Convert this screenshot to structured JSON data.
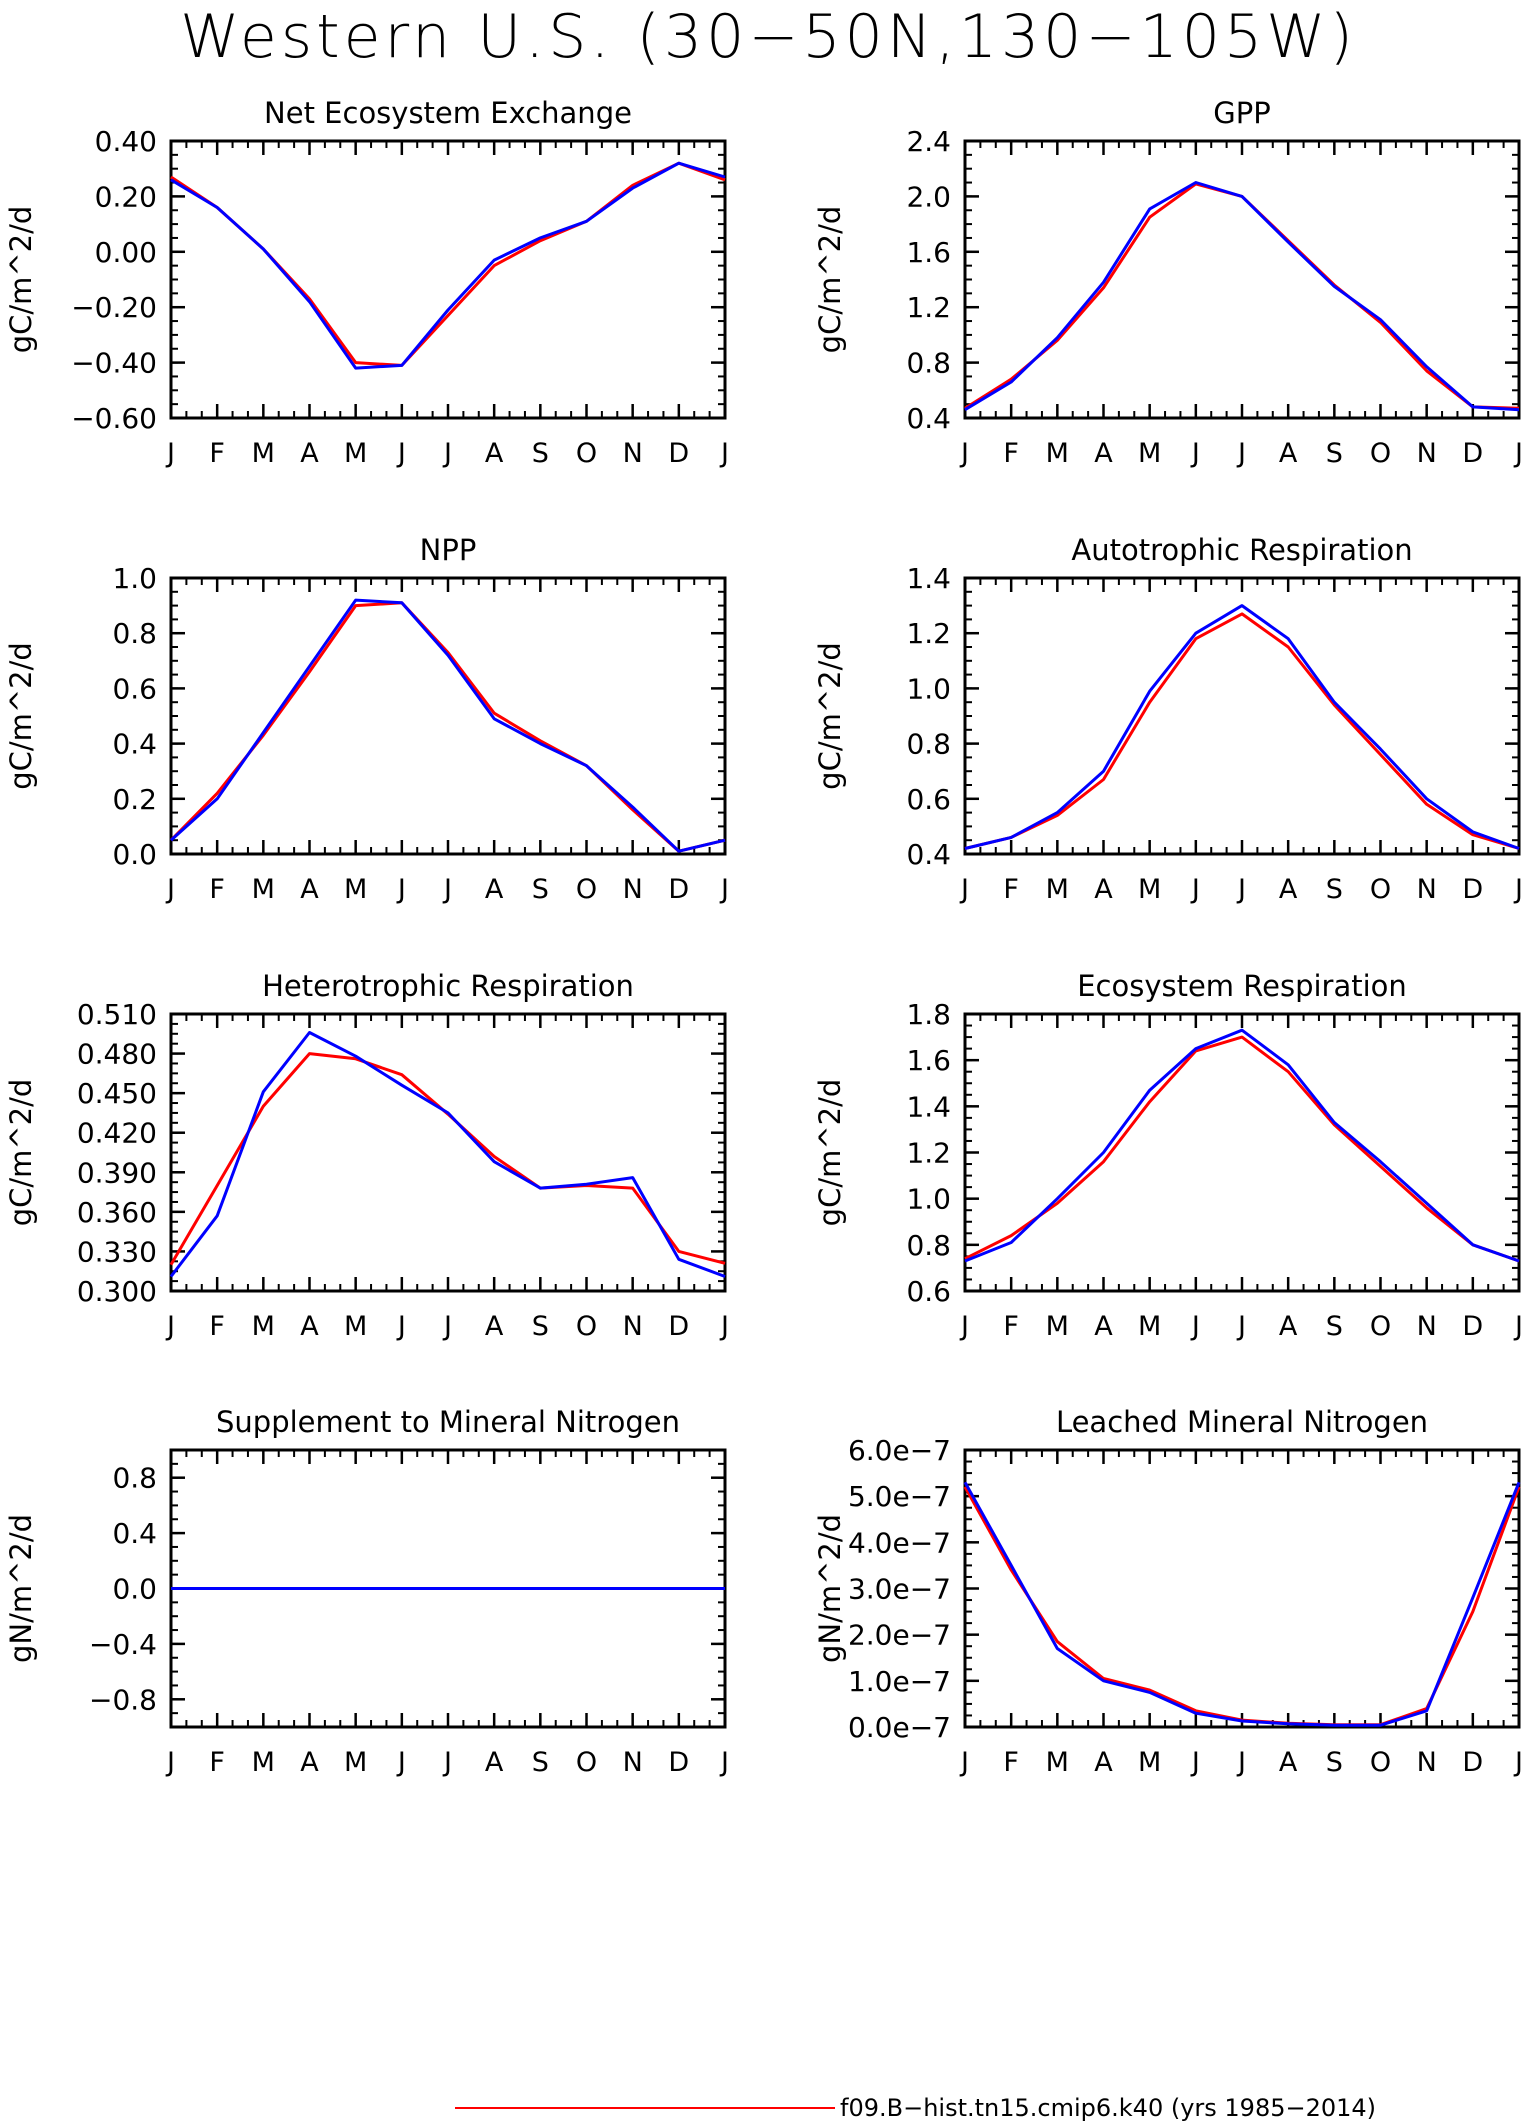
{
  "title": "Western U.S. (30−50N,130−105W)",
  "months": [
    "J",
    "F",
    "M",
    "A",
    "M",
    "J",
    "J",
    "A",
    "S",
    "O",
    "N",
    "D",
    "J"
  ],
  "colors": {
    "red": "#ff0000",
    "blue": "#0000ff",
    "axis": "#000000"
  },
  "legend": {
    "red_label": "f09.B−hist.tn15.cmip6.k40 (yrs 1985−2014)"
  },
  "chart_data": [
    {
      "type": "line",
      "title": "Net Ecosystem Exchange",
      "ylabel": "gC/m^2/d",
      "ylim": [
        -0.6,
        0.4
      ],
      "yticks": [
        0.4,
        0.2,
        0.0,
        -0.2,
        -0.4,
        -0.6
      ],
      "ytick_labels": [
        "0.40",
        "0.20",
        "0.00",
        "−0.20",
        "−0.40",
        "−0.60"
      ],
      "categories": [
        "J",
        "F",
        "M",
        "A",
        "M",
        "J",
        "J",
        "A",
        "S",
        "O",
        "N",
        "D",
        "J"
      ],
      "series": [
        {
          "color": "red",
          "values": [
            0.27,
            0.16,
            0.01,
            -0.17,
            -0.4,
            -0.41,
            -0.23,
            -0.05,
            0.04,
            0.11,
            0.24,
            0.32,
            0.26
          ]
        },
        {
          "color": "blue",
          "values": [
            0.26,
            0.16,
            0.01,
            -0.18,
            -0.42,
            -0.41,
            -0.21,
            -0.03,
            0.05,
            0.11,
            0.23,
            0.32,
            0.27
          ]
        }
      ]
    },
    {
      "type": "line",
      "title": "GPP",
      "ylabel": "gC/m^2/d",
      "ylim": [
        0.4,
        2.4
      ],
      "yticks": [
        2.4,
        2.0,
        1.6,
        1.2,
        0.8,
        0.4
      ],
      "ytick_labels": [
        "2.4",
        "2.0",
        "1.6",
        "1.2",
        "0.8",
        "0.4"
      ],
      "categories": [
        "J",
        "F",
        "M",
        "A",
        "M",
        "J",
        "J",
        "A",
        "S",
        "O",
        "N",
        "D",
        "J"
      ],
      "series": [
        {
          "color": "red",
          "values": [
            0.47,
            0.68,
            0.96,
            1.34,
            1.85,
            2.09,
            2.0,
            1.68,
            1.36,
            1.09,
            0.74,
            0.48,
            0.47
          ]
        },
        {
          "color": "blue",
          "values": [
            0.46,
            0.66,
            0.98,
            1.38,
            1.91,
            2.1,
            2.0,
            1.67,
            1.35,
            1.11,
            0.77,
            0.48,
            0.46
          ]
        }
      ]
    },
    {
      "type": "line",
      "title": "NPP",
      "ylabel": "gC/m^2/d",
      "ylim": [
        0.0,
        1.0
      ],
      "yticks": [
        1.0,
        0.8,
        0.6,
        0.4,
        0.2,
        0.0
      ],
      "ytick_labels": [
        "1.0",
        "0.8",
        "0.6",
        "0.4",
        "0.2",
        "0.0"
      ],
      "categories": [
        "J",
        "F",
        "M",
        "A",
        "M",
        "J",
        "J",
        "A",
        "S",
        "O",
        "N",
        "D",
        "J"
      ],
      "series": [
        {
          "color": "red",
          "values": [
            0.05,
            0.22,
            0.43,
            0.66,
            0.9,
            0.91,
            0.73,
            0.51,
            0.41,
            0.32,
            0.16,
            0.01,
            0.05
          ]
        },
        {
          "color": "blue",
          "values": [
            0.05,
            0.2,
            0.44,
            0.68,
            0.92,
            0.91,
            0.72,
            0.49,
            0.4,
            0.32,
            0.17,
            0.01,
            0.05
          ]
        }
      ]
    },
    {
      "type": "line",
      "title": "Autotrophic Respiration",
      "ylabel": "gC/m^2/d",
      "ylim": [
        0.4,
        1.4
      ],
      "yticks": [
        1.4,
        1.2,
        1.0,
        0.8,
        0.6,
        0.4
      ],
      "ytick_labels": [
        "1.4",
        "1.2",
        "1.0",
        "0.8",
        "0.6",
        "0.4"
      ],
      "categories": [
        "J",
        "F",
        "M",
        "A",
        "M",
        "J",
        "J",
        "A",
        "S",
        "O",
        "N",
        "D",
        "J"
      ],
      "series": [
        {
          "color": "red",
          "values": [
            0.42,
            0.46,
            0.54,
            0.67,
            0.95,
            1.18,
            1.27,
            1.15,
            0.94,
            0.76,
            0.58,
            0.47,
            0.42
          ]
        },
        {
          "color": "blue",
          "values": [
            0.42,
            0.46,
            0.55,
            0.7,
            0.99,
            1.2,
            1.3,
            1.18,
            0.95,
            0.78,
            0.6,
            0.48,
            0.42
          ]
        }
      ]
    },
    {
      "type": "line",
      "title": "Heterotrophic Respiration",
      "ylabel": "gC/m^2/d",
      "ylim": [
        0.3,
        0.51
      ],
      "yticks": [
        0.51,
        0.48,
        0.45,
        0.42,
        0.39,
        0.36,
        0.33,
        0.3
      ],
      "ytick_labels": [
        "0.510",
        "0.480",
        "0.450",
        "0.420",
        "0.390",
        "0.360",
        "0.330",
        "0.300"
      ],
      "categories": [
        "J",
        "F",
        "M",
        "A",
        "M",
        "J",
        "J",
        "A",
        "S",
        "O",
        "N",
        "D",
        "J"
      ],
      "series": [
        {
          "color": "red",
          "values": [
            0.32,
            0.38,
            0.44,
            0.48,
            0.476,
            0.464,
            0.434,
            0.402,
            0.378,
            0.38,
            0.378,
            0.33,
            0.321
          ]
        },
        {
          "color": "blue",
          "values": [
            0.311,
            0.357,
            0.451,
            0.496,
            0.478,
            0.456,
            0.435,
            0.398,
            0.378,
            0.381,
            0.386,
            0.324,
            0.311
          ]
        }
      ]
    },
    {
      "type": "line",
      "title": "Ecosystem Respiration",
      "ylabel": "gC/m^2/d",
      "ylim": [
        0.6,
        1.8
      ],
      "yticks": [
        1.8,
        1.6,
        1.4,
        1.2,
        1.0,
        0.8,
        0.6
      ],
      "ytick_labels": [
        "1.8",
        "1.6",
        "1.4",
        "1.2",
        "1.0",
        "0.8",
        "0.6"
      ],
      "categories": [
        "J",
        "F",
        "M",
        "A",
        "M",
        "J",
        "J",
        "A",
        "S",
        "O",
        "N",
        "D",
        "J"
      ],
      "series": [
        {
          "color": "red",
          "values": [
            0.74,
            0.84,
            0.98,
            1.16,
            1.42,
            1.64,
            1.7,
            1.55,
            1.32,
            1.14,
            0.96,
            0.8,
            0.73
          ]
        },
        {
          "color": "blue",
          "values": [
            0.73,
            0.81,
            1.0,
            1.2,
            1.47,
            1.65,
            1.73,
            1.58,
            1.33,
            1.16,
            0.98,
            0.8,
            0.73
          ]
        }
      ]
    },
    {
      "type": "line",
      "title": "Supplement to Mineral Nitrogen",
      "ylabel": "gN/m^2/d",
      "ylim": [
        -1.0,
        1.0
      ],
      "yticks": [
        0.8,
        0.4,
        0.0,
        -0.4,
        -0.8
      ],
      "ytick_labels": [
        "0.8",
        "0.4",
        "0.0",
        "−0.4",
        "−0.8"
      ],
      "categories": [
        "J",
        "F",
        "M",
        "A",
        "M",
        "J",
        "J",
        "A",
        "S",
        "O",
        "N",
        "D",
        "J"
      ],
      "series": [
        {
          "color": "red",
          "values": [
            0,
            0,
            0,
            0,
            0,
            0,
            0,
            0,
            0,
            0,
            0,
            0,
            0
          ]
        },
        {
          "color": "blue",
          "values": [
            0,
            0,
            0,
            0,
            0,
            0,
            0,
            0,
            0,
            0,
            0,
            0,
            0
          ]
        }
      ]
    },
    {
      "type": "line",
      "title": "Leached Mineral Nitrogen",
      "ylabel": "gN/m^2/d",
      "ylim": [
        0.0,
        6e-07
      ],
      "yticks": [
        6e-07,
        5e-07,
        4e-07,
        3e-07,
        2e-07,
        1e-07,
        0.0
      ],
      "ytick_labels": [
        "6.0e−7",
        "5.0e−7",
        "4.0e−7",
        "3.0e−7",
        "2.0e−7",
        "1.0e−7",
        "0.0e−7"
      ],
      "categories": [
        "J",
        "F",
        "M",
        "A",
        "M",
        "J",
        "J",
        "A",
        "S",
        "O",
        "N",
        "D",
        "J"
      ],
      "series": [
        {
          "color": "red",
          "values": [
            5.2e-07,
            3.4e-07,
            1.85e-07,
            1.05e-07,
            8e-08,
            3.5e-08,
            1.5e-08,
            8e-09,
            5e-09,
            5e-09,
            4e-08,
            2.5e-07,
            5.2e-07
          ]
        },
        {
          "color": "blue",
          "values": [
            5.3e-07,
            3.5e-07,
            1.7e-07,
            1e-07,
            7.5e-08,
            3e-08,
            1.3e-08,
            7e-09,
            4e-09,
            4e-09,
            3.5e-08,
            2.8e-07,
            5.3e-07
          ]
        }
      ]
    }
  ]
}
